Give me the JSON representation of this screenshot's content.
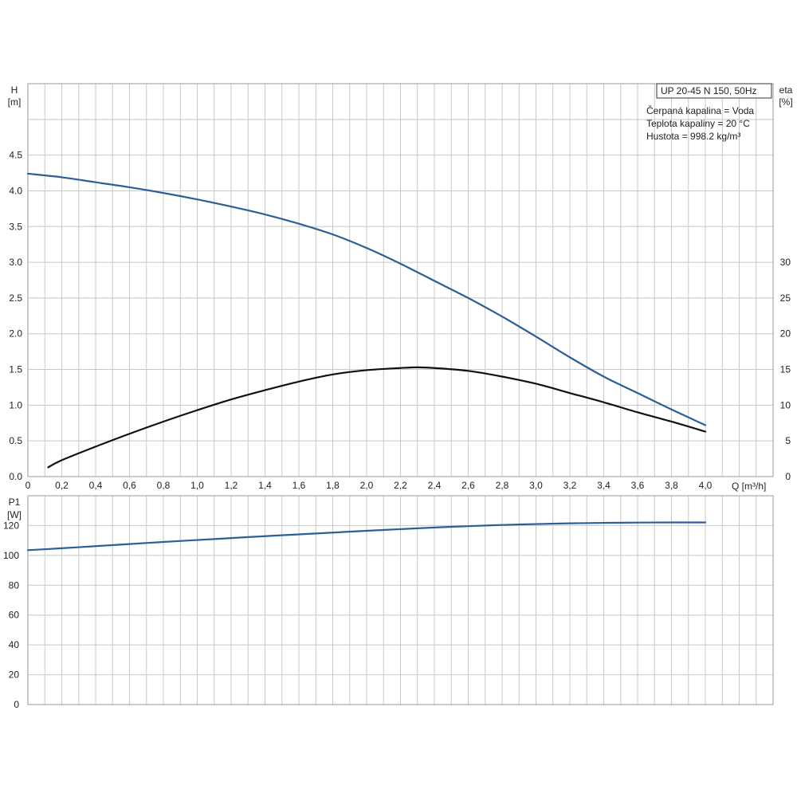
{
  "chart_data": [
    {
      "type": "line",
      "id": "head-efficiency",
      "xlabel": "Q [m³/h]",
      "ylabel_left_name": "H",
      "ylabel_left_unit": "[m]",
      "ylabel_right_name": "eta",
      "ylabel_right_unit": "[%]",
      "xlim": [
        0,
        4.4
      ],
      "ylim_left": [
        0,
        5.5
      ],
      "ylim_right": [
        0,
        55
      ],
      "x_ticks": [
        "0",
        "0,2",
        "0,4",
        "0,6",
        "0,8",
        "1,0",
        "1,2",
        "1,4",
        "1,6",
        "1,8",
        "2,0",
        "2,2",
        "2,4",
        "2,6",
        "2,8",
        "3,0",
        "3,2",
        "3,4",
        "3,6",
        "3,8",
        "4,0"
      ],
      "y_ticks_left": [
        "0.0",
        "0.5",
        "1.0",
        "1.5",
        "2.0",
        "2.5",
        "3.0",
        "3.5",
        "4.0",
        "4.5"
      ],
      "y_ticks_right": [
        "0",
        "5",
        "10",
        "15",
        "20",
        "25",
        "30"
      ],
      "grid": true,
      "legend": {
        "title": "UP 20-45 N 150, 50Hz",
        "lines": [
          "Čerpaná kapalina = Voda",
          "Teplota kapaliny = 20 °C",
          "Hustota = 998.2 kg/m³"
        ],
        "placement": "top-right"
      },
      "series": [
        {
          "axis": "left",
          "color": "#2c5f95",
          "x": [
            0,
            0.2,
            0.4,
            0.6,
            0.8,
            1.0,
            1.2,
            1.4,
            1.6,
            1.8,
            2.0,
            2.2,
            2.4,
            2.6,
            2.8,
            3.0,
            3.2,
            3.4,
            3.6,
            3.8,
            4.0
          ],
          "values": [
            4.24,
            4.19,
            4.12,
            4.05,
            3.97,
            3.88,
            3.78,
            3.67,
            3.54,
            3.39,
            3.2,
            2.98,
            2.74,
            2.5,
            2.24,
            1.96,
            1.67,
            1.4,
            1.17,
            0.94,
            0.72
          ]
        },
        {
          "axis": "right",
          "color": "#111111",
          "x": [
            0.12,
            0.2,
            0.4,
            0.6,
            0.8,
            1.0,
            1.2,
            1.4,
            1.6,
            1.8,
            2.0,
            2.2,
            2.3,
            2.4,
            2.6,
            2.8,
            3.0,
            3.2,
            3.4,
            3.6,
            3.8,
            4.0
          ],
          "values": [
            1.3,
            2.3,
            4.2,
            6.0,
            7.7,
            9.3,
            10.8,
            12.1,
            13.3,
            14.3,
            14.9,
            15.2,
            15.3,
            15.2,
            14.8,
            14.0,
            13.0,
            11.7,
            10.4,
            9.0,
            7.7,
            6.3
          ]
        }
      ]
    },
    {
      "type": "line",
      "id": "power",
      "ylabel_left_name": "P1",
      "ylabel_left_unit": "[W]",
      "xlim": [
        0,
        4.4
      ],
      "ylim_left": [
        0,
        140
      ],
      "y_ticks_left": [
        "0",
        "20",
        "40",
        "60",
        "80",
        "100",
        "120"
      ],
      "grid": true,
      "series": [
        {
          "axis": "left",
          "color": "#2c5f95",
          "x": [
            0,
            0.2,
            0.4,
            0.6,
            0.8,
            1.0,
            1.2,
            1.4,
            1.6,
            1.8,
            2.0,
            2.2,
            2.4,
            2.6,
            2.8,
            3.0,
            3.2,
            3.4,
            3.6,
            3.8,
            4.0
          ],
          "values": [
            103.5,
            104.8,
            106.2,
            107.6,
            109.0,
            110.3,
            111.6,
            112.9,
            114.1,
            115.3,
            116.5,
            117.6,
            118.7,
            119.6,
            120.4,
            121.0,
            121.5,
            121.8,
            122.0,
            122.1,
            122.1
          ]
        }
      ]
    }
  ]
}
